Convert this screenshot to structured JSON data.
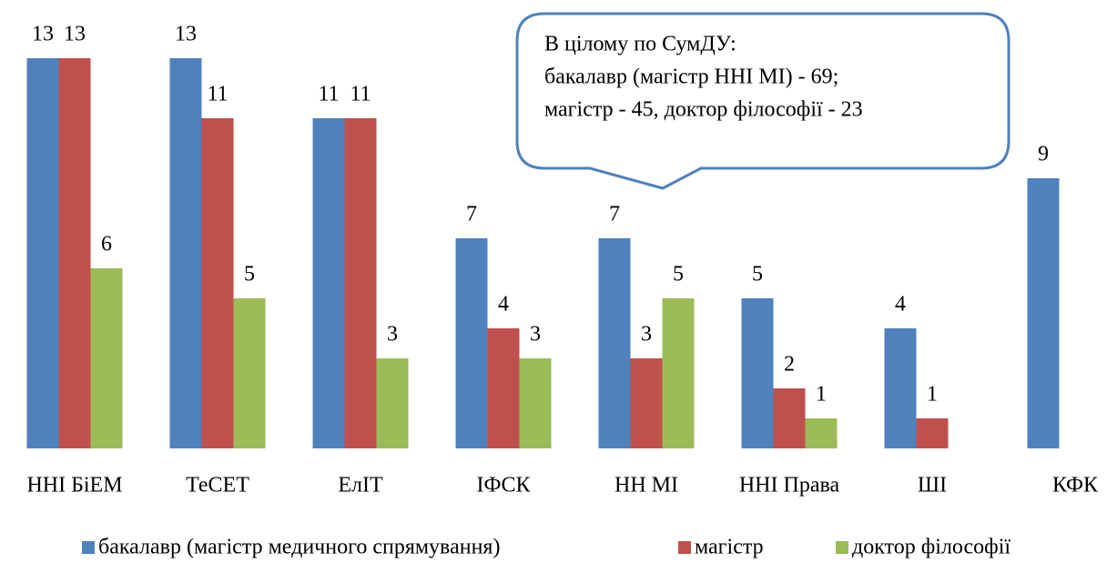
{
  "chart_data": {
    "type": "bar",
    "categories": [
      "ННІ БіЕМ",
      "ТеСЕТ",
      "ЕлІТ",
      "ІФСК",
      "НН МІ",
      "ННІ Права",
      "ШІ",
      "КФК"
    ],
    "series": [
      {
        "name": "бакалавр (магістр медичного спрямування)",
        "color": "#4f81bd",
        "values": [
          13,
          13,
          11,
          7,
          7,
          5,
          4,
          9
        ]
      },
      {
        "name": "магістр",
        "color": "#c0504d",
        "values": [
          13,
          11,
          11,
          4,
          3,
          2,
          1,
          null
        ]
      },
      {
        "name": "доктор філософії",
        "color": "#9bbb59",
        "values": [
          6,
          5,
          3,
          3,
          5,
          1,
          null,
          null
        ]
      }
    ],
    "ylim": [
      0,
      14
    ],
    "annotation": [
      "В цілому по СумДУ:",
      "бакалавр (магістр ННІ МІ) - 69;",
      "магістр - 45, доктор філософії - 23"
    ],
    "legend": "bottom"
  }
}
